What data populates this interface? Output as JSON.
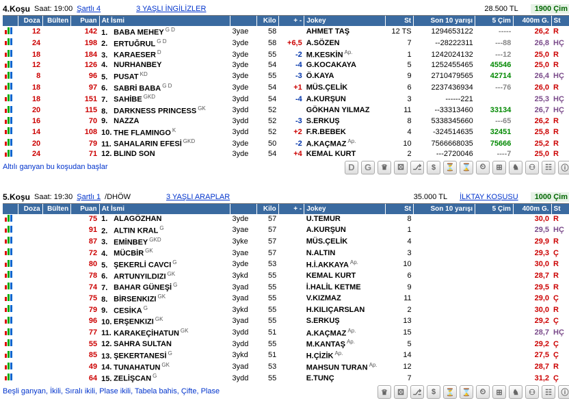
{
  "columns": {
    "doz": "Doza",
    "bul": "Bülten",
    "puan": "Puan",
    "name": "At İsmi",
    "kilo": "Kilo",
    "pm": "+ -",
    "jokey": "Jokey",
    "st": "St",
    "son10": "Son 10 yarışı",
    "cim5": "5 Çim",
    "m400": "400m G.",
    "st2": "St"
  },
  "races": [
    {
      "title": "4.Koşu",
      "time": "Saat: 19:00",
      "cond": "Şartlı 4",
      "cat": "3 YAŞLI İNGİLİZLER",
      "prize": "28.500 TL",
      "meet": "",
      "dist": "1900 Çim",
      "footer": "Altılı ganyan bu koşudan başlar",
      "preIcons": [
        "D",
        "G"
      ],
      "rows": [
        {
          "doz": "12",
          "bul": "",
          "puan": "142",
          "num": "1",
          "name": "BABA MEHEY",
          "tag": "G D",
          "age": "3yae",
          "kilo": "58",
          "pm": "",
          "jk": "AHMET TAŞ",
          "jkTag": "",
          "st": "12 TS",
          "son10": "1294653122",
          "cim5": "-----",
          "cim5c": "dash5",
          "m400": "26,2",
          "m400s": "R"
        },
        {
          "doz": "24",
          "bul": "",
          "puan": "198",
          "num": "2",
          "name": "ERTUĞRUL",
          "tag": "G D",
          "age": "3yde",
          "kilo": "58",
          "pm": "+6,5",
          "pmc": "pos",
          "jk": "A.SÖZEN",
          "jkTag": "",
          "st": "7",
          "son10": "--28222311",
          "cim5": "---88",
          "cim5c": "dash5",
          "m400": "26,8",
          "m400s": "HÇ"
        },
        {
          "doz": "18",
          "bul": "",
          "puan": "184",
          "num": "3",
          "name": "KARAESER",
          "tag": "D",
          "age": "3yde",
          "kilo": "55",
          "pm": "-2",
          "pmc": "neg",
          "jk": "M.KESKİN",
          "jkTag": "Ap.",
          "st": "1",
          "son10": "1242024132",
          "cim5": "---12",
          "cim5c": "dash5",
          "m400": "25,0",
          "m400s": "R"
        },
        {
          "doz": "12",
          "bul": "",
          "puan": "126",
          "num": "4",
          "name": "NURHANBEY",
          "tag": "",
          "age": "3yde",
          "kilo": "54",
          "pm": "-4",
          "pmc": "neg",
          "jk": "G.KOCAKAYA",
          "jkTag": "",
          "st": "5",
          "son10": "1252455465",
          "cim5": "45546",
          "cim5c": "green5",
          "m400": "25,0",
          "m400s": "R"
        },
        {
          "doz": "8",
          "bul": "",
          "puan": "96",
          "num": "5",
          "name": "PUSAT",
          "tag": "KD",
          "age": "3yde",
          "kilo": "55",
          "pm": "-3",
          "pmc": "neg",
          "jk": "Ö.KAYA",
          "jkTag": "",
          "st": "9",
          "son10": "2710479565",
          "cim5": "42714",
          "cim5c": "green5",
          "m400": "26,4",
          "m400s": "HÇ"
        },
        {
          "doz": "18",
          "bul": "",
          "puan": "97",
          "num": "6",
          "name": "SABRİ BABA",
          "tag": "G D",
          "age": "3yde",
          "kilo": "54",
          "pm": "+1",
          "pmc": "pos",
          "jk": "MÜS.ÇELİK",
          "jkTag": "",
          "st": "6",
          "son10": "2237436934",
          "cim5": "---76",
          "cim5c": "dash5",
          "m400": "26,0",
          "m400s": "R"
        },
        {
          "doz": "18",
          "bul": "",
          "puan": "151",
          "num": "7",
          "name": "SAHİBE",
          "tag": "GKD",
          "age": "3ydd",
          "kilo": "54",
          "pm": "-4",
          "pmc": "neg",
          "jk": "A.KURŞUN",
          "jkTag": "",
          "st": "3",
          "son10": "------221",
          "cim5": "",
          "cim5c": "",
          "m400": "25,3",
          "m400s": "HÇ"
        },
        {
          "doz": "20",
          "bul": "",
          "puan": "115",
          "num": "8",
          "name": "DARKNESS PRINCESS",
          "tag": "GK",
          "age": "3ydd",
          "kilo": "52",
          "pm": "",
          "jk": "GÖKHAN YILMAZ",
          "jkTag": "",
          "st": "11",
          "son10": "--33313460",
          "cim5": "33134",
          "cim5c": "green5",
          "m400": "26,7",
          "m400s": "HÇ"
        },
        {
          "doz": "16",
          "bul": "",
          "puan": "70",
          "num": "9",
          "name": "NAZZA",
          "tag": "",
          "age": "3ydd",
          "kilo": "52",
          "pm": "-3",
          "pmc": "neg",
          "jk": "S.ERKUŞ",
          "jkTag": "",
          "st": "8",
          "son10": "5338345660",
          "cim5": "---65",
          "cim5c": "dash5",
          "m400": "26,2",
          "m400s": "R"
        },
        {
          "doz": "14",
          "bul": "",
          "puan": "108",
          "num": "10",
          "name": "THE FLAMINGO",
          "tag": "K",
          "age": "3ydd",
          "kilo": "52",
          "pm": "+2",
          "pmc": "pos",
          "jk": "F.R.BEBEK",
          "jkTag": "",
          "st": "4",
          "son10": "-324514635",
          "cim5": "32451",
          "cim5c": "green5",
          "m400": "25,8",
          "m400s": "R"
        },
        {
          "doz": "20",
          "bul": "",
          "puan": "79",
          "num": "11",
          "name": "SAHALARIN EFESİ",
          "tag": "GKD",
          "age": "3yde",
          "kilo": "50",
          "pm": "-2",
          "pmc": "neg",
          "jk": "A.KAÇMAZ",
          "jkTag": "Ap.",
          "st": "10",
          "son10": "7566668035",
          "cim5": "75666",
          "cim5c": "green5",
          "m400": "25,2",
          "m400s": "R"
        },
        {
          "doz": "24",
          "bul": "",
          "puan": "71",
          "num": "12",
          "name": "BLIND SON",
          "tag": "",
          "age": "3yde",
          "kilo": "54",
          "pm": "+4",
          "pmc": "pos",
          "jk": "KEMAL KURT",
          "jkTag": "",
          "st": "2",
          "son10": "---2720046",
          "cim5": "----7",
          "cim5c": "dash5",
          "m400": "25,0",
          "m400s": "R"
        }
      ]
    },
    {
      "title": "5.Koşu",
      "time": "Saat: 19:30",
      "cond": "Şartlı 1",
      "condExtra": "/DHÖW",
      "cat": "3 YAŞLI ARAPLAR",
      "prize": "35.000 TL",
      "meet": "İLKTAY KOŞUSU",
      "dist": "1000 Çim",
      "footer": "Beşli ganyan, İkili, Sıralı ikili, Plase ikili, Tabela bahis, Çifte, Plase",
      "preIcons": [],
      "rows": [
        {
          "doz": "",
          "bul": "",
          "puan": "75",
          "num": "1",
          "name": "ALAGÖZHAN",
          "tag": "",
          "age": "3yde",
          "kilo": "57",
          "pm": "",
          "jk": "U.TEMUR",
          "jkTag": "",
          "st": "8",
          "son10": "",
          "cim5": "",
          "m400": "30,0",
          "m400s": "R"
        },
        {
          "doz": "",
          "bul": "",
          "puan": "91",
          "num": "2",
          "name": "ALTIN KRAL",
          "tag": "G",
          "age": "3yae",
          "kilo": "57",
          "pm": "",
          "jk": "A.KURŞUN",
          "jkTag": "",
          "st": "1",
          "son10": "",
          "cim5": "",
          "m400": "29,5",
          "m400s": "HÇ"
        },
        {
          "doz": "",
          "bul": "",
          "puan": "87",
          "num": "3",
          "name": "EMİNBEY",
          "tag": "GKD",
          "age": "3yke",
          "kilo": "57",
          "pm": "",
          "jk": "MÜS.ÇELİK",
          "jkTag": "",
          "st": "4",
          "son10": "",
          "cim5": "",
          "m400": "29,9",
          "m400s": "R"
        },
        {
          "doz": "",
          "bul": "",
          "puan": "72",
          "num": "4",
          "name": "MÜCBİR",
          "tag": "GK",
          "age": "3yae",
          "kilo": "57",
          "pm": "",
          "jk": "N.ALTIN",
          "jkTag": "",
          "st": "3",
          "son10": "",
          "cim5": "",
          "m400": "29,3",
          "m400s": "Ç"
        },
        {
          "doz": "",
          "bul": "",
          "puan": "80",
          "num": "5",
          "name": "ŞEKERLİ CAVCI",
          "tag": "G",
          "age": "3yde",
          "kilo": "53",
          "pm": "",
          "jk": "H.İ.AKKAYA",
          "jkTag": "Ap.",
          "st": "10",
          "son10": "",
          "cim5": "",
          "m400": "30,0",
          "m400s": "R"
        },
        {
          "doz": "",
          "bul": "",
          "puan": "78",
          "num": "6",
          "name": "ARTUNYILDIZI",
          "tag": "GK",
          "age": "3ykd",
          "kilo": "55",
          "pm": "",
          "jk": "KEMAL KURT",
          "jkTag": "",
          "st": "6",
          "son10": "",
          "cim5": "",
          "m400": "28,7",
          "m400s": "R"
        },
        {
          "doz": "",
          "bul": "",
          "puan": "74",
          "num": "7",
          "name": "BAHAR GÜNEŞİ",
          "tag": "G",
          "age": "3yad",
          "kilo": "55",
          "pm": "",
          "jk": "İ.HALİL KETME",
          "jkTag": "",
          "st": "9",
          "son10": "",
          "cim5": "",
          "m400": "29,5",
          "m400s": "R"
        },
        {
          "doz": "",
          "bul": "",
          "puan": "75",
          "num": "8",
          "name": "BİRSENKIZI",
          "tag": "GK",
          "age": "3yad",
          "kilo": "55",
          "pm": "",
          "jk": "V.KIZMAZ",
          "jkTag": "",
          "st": "11",
          "son10": "",
          "cim5": "",
          "m400": "29,0",
          "m400s": "Ç"
        },
        {
          "doz": "",
          "bul": "",
          "puan": "79",
          "num": "9",
          "name": "CESİKA",
          "tag": "G",
          "age": "3ykd",
          "kilo": "55",
          "pm": "",
          "jk": "H.KILIÇARSLAN",
          "jkTag": "",
          "st": "2",
          "son10": "",
          "cim5": "",
          "m400": "30,0",
          "m400s": "R"
        },
        {
          "doz": "",
          "bul": "",
          "puan": "96",
          "num": "10",
          "name": "ERŞENKIZI",
          "tag": "GK",
          "age": "3yad",
          "kilo": "55",
          "pm": "",
          "jk": "S.ERKUŞ",
          "jkTag": "",
          "st": "13",
          "son10": "",
          "cim5": "",
          "m400": "29,2",
          "m400s": "Ç"
        },
        {
          "doz": "",
          "bul": "",
          "puan": "77",
          "num": "11",
          "name": "KARAKEÇİHATUN",
          "tag": "GK",
          "age": "3ydd",
          "kilo": "51",
          "pm": "",
          "jk": "A.KAÇMAZ",
          "jkTag": "Ap.",
          "st": "15",
          "son10": "",
          "cim5": "",
          "m400": "28,7",
          "m400s": "HÇ"
        },
        {
          "doz": "",
          "bul": "",
          "puan": "55",
          "num": "12",
          "name": "SAHRA SULTAN",
          "tag": "",
          "age": "3ydd",
          "kilo": "55",
          "pm": "",
          "jk": "M.KANTAŞ",
          "jkTag": "Ap.",
          "st": "5",
          "son10": "",
          "cim5": "",
          "m400": "29,2",
          "m400s": "Ç"
        },
        {
          "doz": "",
          "bul": "",
          "puan": "85",
          "num": "13",
          "name": "ŞEKERTANESİ",
          "tag": "G",
          "age": "3ykd",
          "kilo": "51",
          "pm": "",
          "jk": "H.ÇİZİK",
          "jkTag": "Ap.",
          "st": "14",
          "son10": "",
          "cim5": "",
          "m400": "27,5",
          "m400s": "Ç"
        },
        {
          "doz": "",
          "bul": "",
          "puan": "49",
          "num": "14",
          "name": "TUNAHATUN",
          "tag": "GK",
          "age": "3yad",
          "kilo": "53",
          "pm": "",
          "jk": "MAHSUN TURAN",
          "jkTag": "Ap.",
          "st": "12",
          "son10": "",
          "cim5": "",
          "m400": "28,7",
          "m400s": "R"
        },
        {
          "doz": "",
          "bul": "",
          "puan": "64",
          "num": "15",
          "name": "ZELİŞCAN",
          "tag": "G",
          "age": "3ydd",
          "kilo": "55",
          "pm": "",
          "jk": "E.TUNÇ",
          "jkTag": "",
          "st": "7",
          "son10": "",
          "cim5": "",
          "m400": "31,2",
          "m400s": "Ç"
        }
      ]
    }
  ],
  "iconGlyphs": [
    "♛",
    "⚄",
    "⎇",
    "$",
    "⏳",
    "⌛",
    "⏲",
    "⊞",
    "♞",
    "⚇",
    "☷",
    "ⓘ"
  ]
}
